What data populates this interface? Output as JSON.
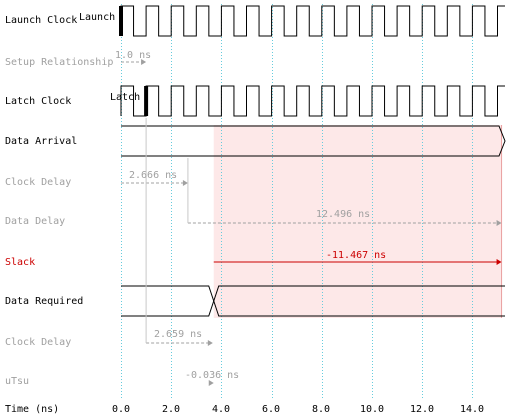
{
  "rows": [
    {
      "key": "launch_clock",
      "label": "Launch Clock",
      "style": "normal"
    },
    {
      "key": "setup_relationship",
      "label": "Setup Relationship",
      "style": "dim"
    },
    {
      "key": "latch_clock",
      "label": "Latch Clock",
      "style": "normal"
    },
    {
      "key": "data_arrival",
      "label": "Data Arrival",
      "style": "normal"
    },
    {
      "key": "clock_delay_1",
      "label": "Clock Delay",
      "style": "dim"
    },
    {
      "key": "data_delay",
      "label": "Data Delay",
      "style": "dim"
    },
    {
      "key": "slack",
      "label": "Slack",
      "style": "red"
    },
    {
      "key": "data_required",
      "label": "Data Required",
      "style": "normal"
    },
    {
      "key": "clock_delay_2",
      "label": "Clock Delay",
      "style": "dim"
    },
    {
      "key": "utsu",
      "label": "uTsu",
      "style": "dim"
    }
  ],
  "axis": {
    "label": "Time (ns)",
    "min": 0.0,
    "max": 15.4,
    "ticks": [
      "0.0",
      "2.0",
      "4.0",
      "6.0",
      "8.0",
      "10.0",
      "12.0",
      "14.0"
    ],
    "tick_values": [
      0,
      2,
      4,
      6,
      8,
      10,
      12,
      14
    ]
  },
  "waveform_labels": {
    "launch": "Launch",
    "latch": "Latch"
  },
  "annotations": {
    "setup_relationship": "1.0 ns",
    "clock_delay_1": "2.666 ns",
    "data_delay": "12.496 ns",
    "slack": "-11.467 ns",
    "clock_delay_2": "2.659 ns",
    "utsu": "-0.036 ns"
  },
  "timing": {
    "clock_half_period": 0.5,
    "launch_edge": 0.0,
    "latch_edge": 1.0,
    "clock_delay_1": 2.666,
    "data_arrival": 15.162,
    "clock_delay_2": 2.659,
    "utsu": -0.036,
    "data_required": 3.695
  },
  "colors": {
    "signal": "#000000",
    "dim": "#a0a0a0",
    "slack": "#cc0000",
    "slack_fill": "#fde8e8",
    "slack_border": "#e8a0a0",
    "gridline": "#66ccdd"
  }
}
